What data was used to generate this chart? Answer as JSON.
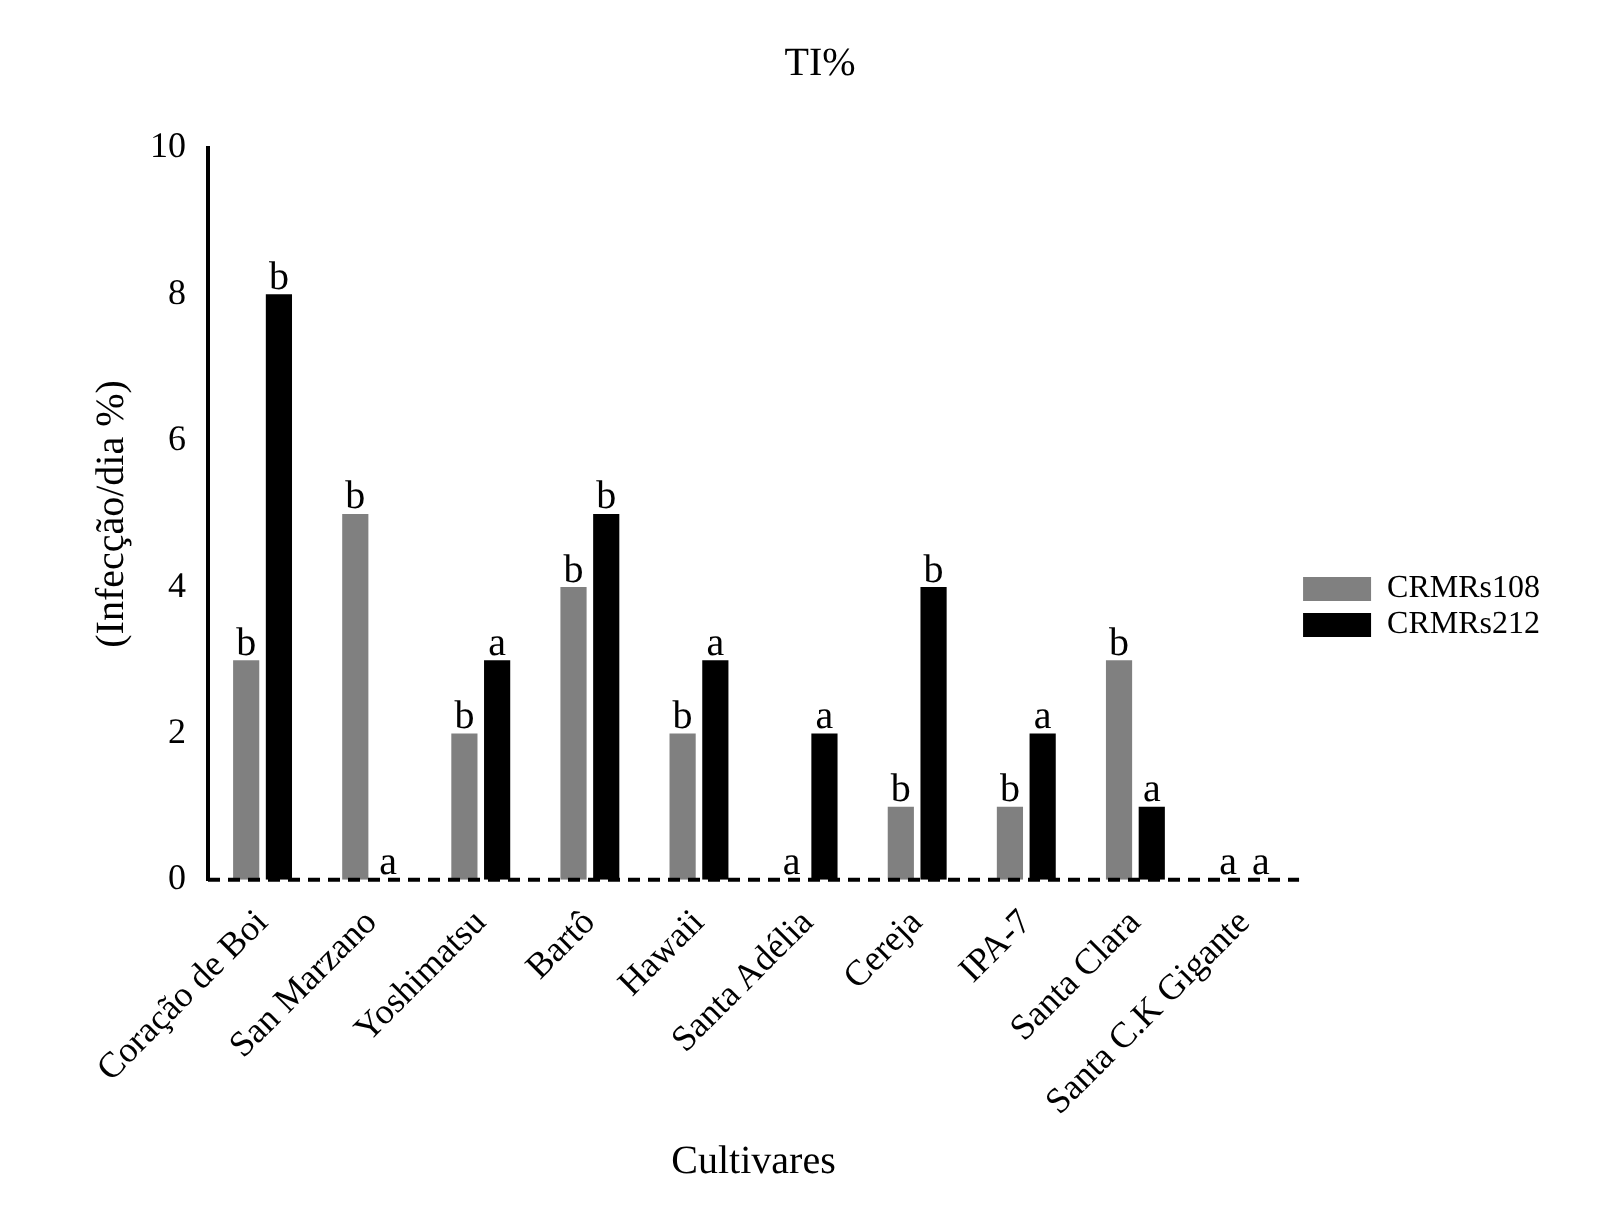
{
  "chart_data": {
    "type": "bar",
    "title": "TI%",
    "xlabel": "Cultivares",
    "ylabel": "(Infecção/dia %)",
    "categories": [
      "Coração de Boi",
      "San Marzano",
      "Yoshimatsu",
      "Bartô",
      "Hawaii",
      "Santa Adélia",
      "Cereja",
      "IPA-7",
      "Santa Clara",
      "Santa C.K Gigante"
    ],
    "series": [
      {
        "name": "CRMRs108",
        "color": "#808080",
        "values": [
          3,
          5,
          2,
          4,
          2,
          0,
          1,
          1,
          3,
          0
        ],
        "value_labels": [
          "b",
          "b",
          "b",
          "b",
          "b",
          "a",
          "b",
          "b",
          "b",
          "a"
        ]
      },
      {
        "name": "CRMRs212",
        "color": "#000000",
        "values": [
          8,
          0,
          3,
          5,
          3,
          2,
          4,
          2,
          1,
          0
        ],
        "value_labels": [
          "b",
          "a",
          "a",
          "b",
          "a",
          "a",
          "b",
          "a",
          "a",
          "a"
        ]
      }
    ],
    "ylim": [
      0,
      10
    ],
    "yticks": [
      0,
      2,
      4,
      6,
      8,
      10
    ],
    "grid": false,
    "legend": "right",
    "ref_lines": [
      {
        "axis": "y",
        "value": 0,
        "color": "#000000",
        "line_style": "dashed"
      }
    ]
  }
}
